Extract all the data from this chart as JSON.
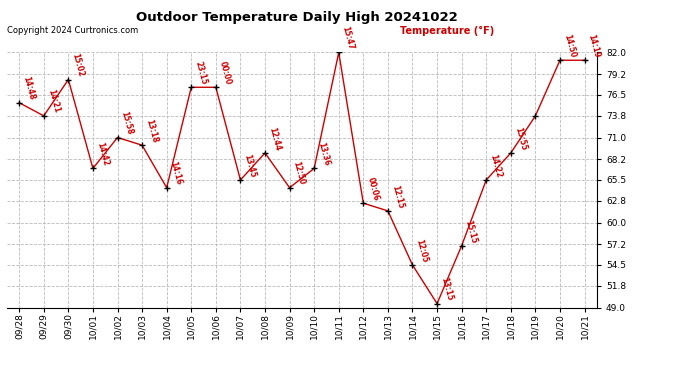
{
  "title": "Outdoor Temperature Daily High 20241022",
  "copyright": "Copyright 2024 Curtronics.com",
  "ylabel": "Temperature (°F)",
  "background_color": "#ffffff",
  "grid_color": "#bbbbbb",
  "line_color": "#cc0000",
  "marker_color": "#000000",
  "label_color": "#cc0000",
  "dates": [
    "09/28",
    "09/29",
    "09/30",
    "10/01",
    "10/02",
    "10/03",
    "10/04",
    "10/05",
    "10/06",
    "10/07",
    "10/08",
    "10/09",
    "10/10",
    "10/11",
    "10/12",
    "10/13",
    "10/14",
    "10/15",
    "10/16",
    "10/17",
    "10/18",
    "10/19",
    "10/20",
    "10/21"
  ],
  "temps": [
    75.5,
    73.8,
    78.5,
    67.0,
    71.0,
    70.0,
    64.5,
    77.5,
    77.5,
    65.5,
    69.0,
    64.5,
    67.0,
    82.0,
    62.5,
    61.5,
    54.5,
    49.5,
    57.0,
    65.5,
    69.0,
    73.8,
    81.0,
    81.0
  ],
  "times": [
    "14:48",
    "14:21",
    "15:02",
    "14:42",
    "15:58",
    "13:18",
    "14:16",
    "23:15",
    "00:00",
    "13:45",
    "12:44",
    "12:50",
    "13:36",
    "15:47",
    "00:06",
    "12:15",
    "12:05",
    "13:15",
    "15:15",
    "14:22",
    "15:55",
    "",
    "14:50",
    "14:19"
  ],
  "ylim": [
    49.0,
    82.0
  ],
  "yticks": [
    49.0,
    51.8,
    54.5,
    57.2,
    60.0,
    62.8,
    65.5,
    68.2,
    71.0,
    73.8,
    76.5,
    79.2,
    82.0
  ]
}
